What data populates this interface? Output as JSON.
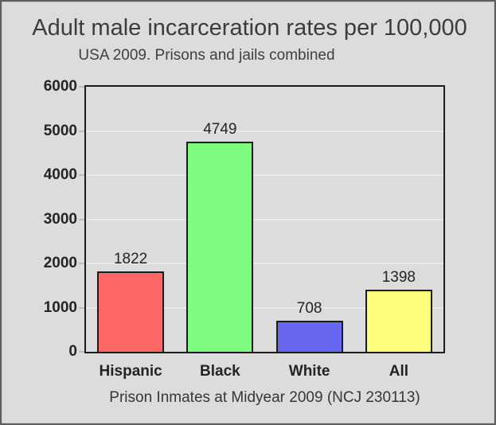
{
  "panel": {
    "background": "#dcdcdc",
    "border_color": "#5e5e5e"
  },
  "header": {
    "title": "Adult male incarceration rates per 100,000",
    "subtitle": "USA 2009. Prisons and jails combined"
  },
  "footer": {
    "caption": "Prison Inmates at Midyear 2009 (NCJ 230113)"
  },
  "chart_data": {
    "type": "bar",
    "title": "Adult male incarceration rates per 100,000",
    "subtitle": "USA 2009. Prisons and jails combined",
    "caption": "Prison Inmates at Midyear 2009 (NCJ 230113)",
    "categories": [
      "Hispanic",
      "Black",
      "White",
      "All"
    ],
    "values": [
      1822,
      4749,
      708,
      1398
    ],
    "bar_colors": [
      "#ff6666",
      "#7efc80",
      "#6767f2",
      "#fcfc7d"
    ],
    "bar_border_color": "#1c1c1c",
    "xlabel": "",
    "ylabel": "",
    "ylim": [
      0,
      6000
    ],
    "yticks": [
      0,
      1000,
      2000,
      3000,
      4000,
      5000,
      6000
    ],
    "grid": true,
    "legend": "none"
  }
}
